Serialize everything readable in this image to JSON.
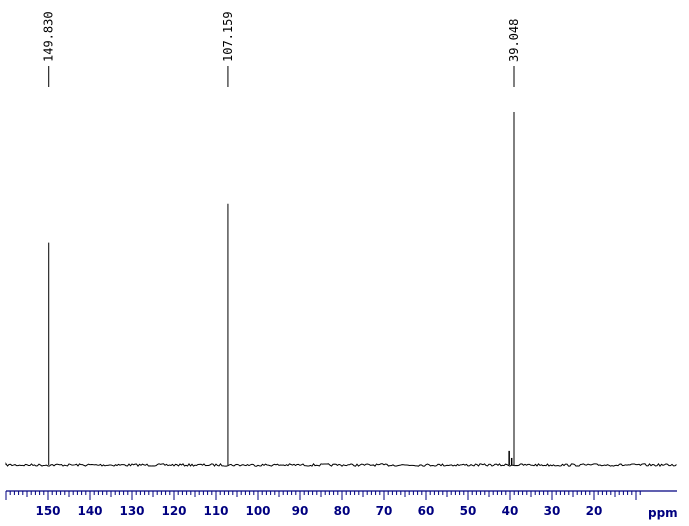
{
  "chart_data": {
    "type": "line",
    "title": "",
    "xlabel": "ppm",
    "ylabel": "",
    "x_axis": {
      "reversed": true,
      "range": [
        160.5,
        8.5
      ],
      "major_ticks": [
        150,
        140,
        130,
        120,
        110,
        100,
        90,
        80,
        70,
        60,
        50,
        40,
        30,
        20
      ]
    },
    "grid": false,
    "peaks": [
      {
        "ppm": 149.83,
        "label": "149.830",
        "relative_height": 0.63
      },
      {
        "ppm": 107.159,
        "label": "107.159",
        "relative_height": 0.74
      },
      {
        "ppm": 39.048,
        "label": "39.048",
        "relative_height": 1.0
      }
    ],
    "minor_features": [
      {
        "ppm": 40.2,
        "relative_height": 0.04
      },
      {
        "ppm": 39.6,
        "relative_height": 0.02
      }
    ],
    "colors": {
      "trace": "#000000",
      "axis": "#000080",
      "labels": "#000000"
    }
  }
}
